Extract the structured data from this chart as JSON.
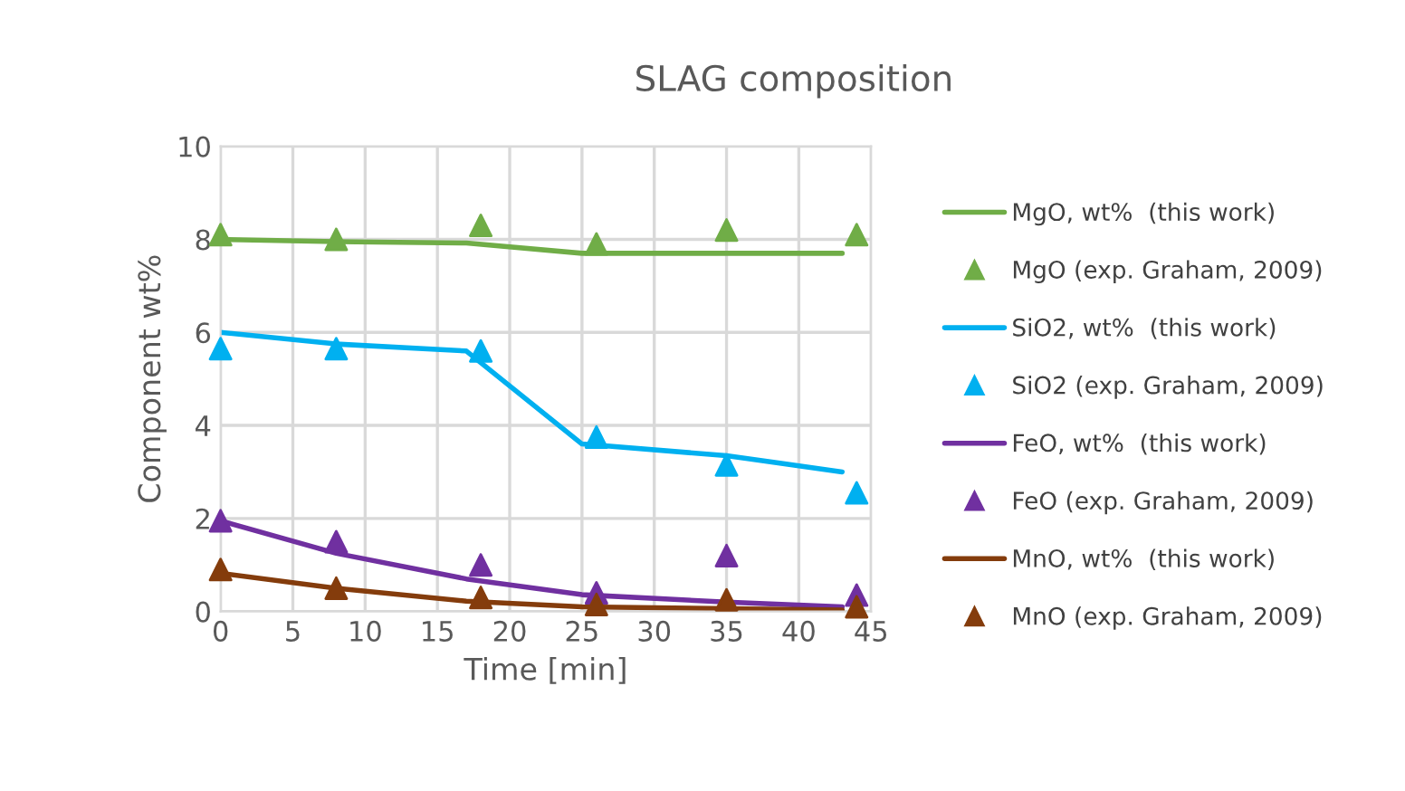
{
  "chart_data": {
    "type": "line",
    "title": "SLAG composition",
    "xlabel": "Time [min]",
    "ylabel": "Component wt%",
    "xlim": [
      0,
      45
    ],
    "xticks": [
      0,
      5,
      10,
      15,
      20,
      25,
      30,
      35,
      40,
      45
    ],
    "ylim": [
      0,
      10
    ],
    "yticks": [
      0,
      2,
      4,
      6,
      8,
      10
    ],
    "grid": true,
    "legend": "right",
    "series": [
      {
        "name": "MgO, wt%  (this work)",
        "type": "line",
        "color": "#70ad47",
        "x": [
          0,
          8,
          17,
          25,
          35,
          43
        ],
        "values": [
          8.0,
          7.95,
          7.92,
          7.7,
          7.7,
          7.7
        ]
      },
      {
        "name": "MgO (exp. Graham, 2009)",
        "type": "scatter",
        "marker": "triangle",
        "color": "#70ad47",
        "x": [
          0,
          8,
          18,
          26,
          35,
          44
        ],
        "values": [
          8.1,
          8.0,
          8.3,
          7.9,
          8.2,
          8.1
        ]
      },
      {
        "name": "SiO2, wt%  (this work)",
        "type": "line",
        "color": "#00b0f0",
        "x": [
          0,
          8,
          17,
          25,
          35,
          43
        ],
        "values": [
          6.0,
          5.75,
          5.6,
          3.6,
          3.35,
          3.0
        ]
      },
      {
        "name": "SiO2 (exp. Graham, 2009)",
        "type": "scatter",
        "marker": "triangle",
        "color": "#00b0f0",
        "x": [
          0,
          8,
          18,
          26,
          35,
          44
        ],
        "values": [
          5.65,
          5.65,
          5.6,
          3.75,
          3.15,
          2.55
        ]
      },
      {
        "name": "FeO, wt%  (this work)",
        "type": "line",
        "color": "#7030a0",
        "x": [
          0,
          8,
          17,
          25,
          35,
          43
        ],
        "values": [
          1.95,
          1.25,
          0.7,
          0.36,
          0.2,
          0.1
        ]
      },
      {
        "name": "FeO (exp. Graham, 2009)",
        "type": "scatter",
        "marker": "triangle",
        "color": "#7030a0",
        "x": [
          0,
          8,
          18,
          26,
          35,
          44
        ],
        "values": [
          1.95,
          1.5,
          1.0,
          0.4,
          1.2,
          0.35
        ]
      },
      {
        "name": "MnO, wt%  (this work)",
        "type": "line",
        "color": "#843c0c",
        "x": [
          0,
          8,
          17,
          25,
          35,
          43
        ],
        "values": [
          0.82,
          0.5,
          0.22,
          0.1,
          0.06,
          0.03
        ]
      },
      {
        "name": "MnO (exp. Graham, 2009)",
        "type": "scatter",
        "marker": "triangle",
        "color": "#843c0c",
        "x": [
          0,
          8,
          18,
          26,
          35,
          44
        ],
        "values": [
          0.9,
          0.5,
          0.3,
          0.15,
          0.25,
          0.1
        ]
      }
    ]
  }
}
